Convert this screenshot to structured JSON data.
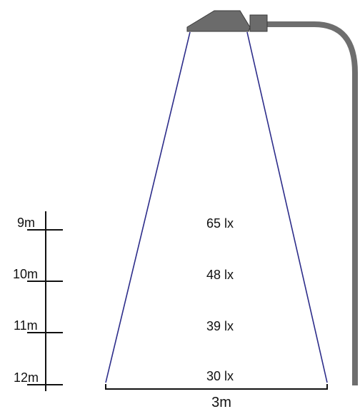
{
  "height_scale": {
    "labels": [
      "9m",
      "10m",
      "11m",
      "12m"
    ]
  },
  "illuminance": {
    "values": [
      "65 lx",
      "48 lx",
      "39 lx",
      "30 lx"
    ]
  },
  "beam_width_label": "3m",
  "colors": {
    "beam": "#2d2d8a",
    "lamp": "#6b6b6b",
    "pole": "#6e6e6e",
    "lines": "#111111"
  }
}
